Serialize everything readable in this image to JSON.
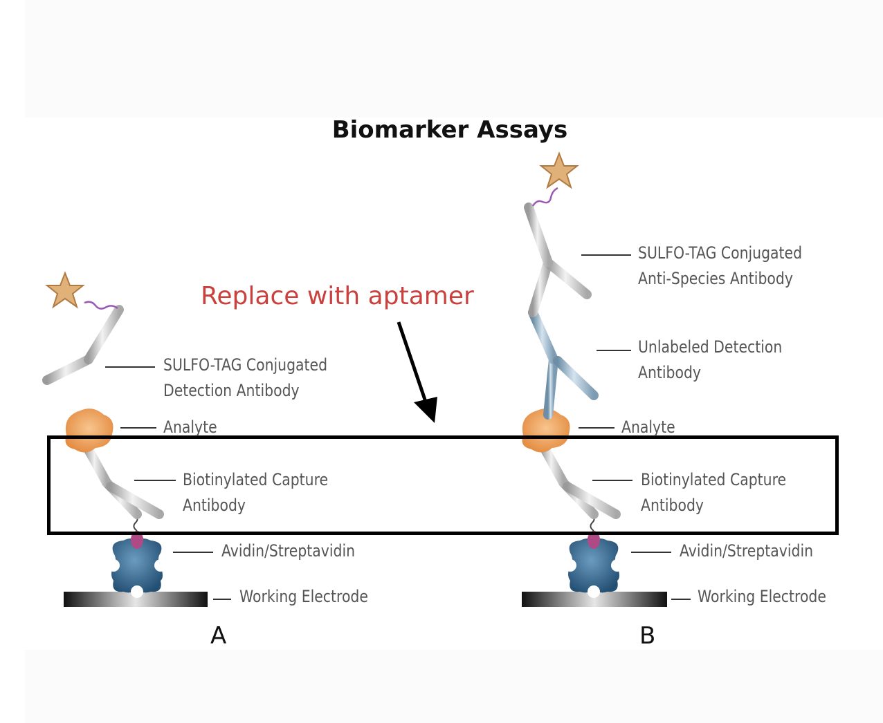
{
  "title": "Biomarker Assays",
  "annotation": "Replace with aptamer",
  "panel_a": {
    "letter": "A",
    "labels": {
      "sulfo_tag_line1": "SULFO-TAG Conjugated",
      "sulfo_tag_line2": "Detection Antibody",
      "analyte": "Analyte",
      "capture_line1": "Biotinylated Capture",
      "capture_line2": "Antibody",
      "avidin": "Avidin/Streptavidin",
      "electrode": "Working Electrode"
    }
  },
  "panel_b": {
    "letter": "B",
    "labels": {
      "sulfo_tag_line1": "SULFO-TAG Conjugated",
      "sulfo_tag_line2": "Anti-Species Antibody",
      "unlabeled_line1": "Unlabeled Detection",
      "unlabeled_line2": "Antibody",
      "analyte": "Analyte",
      "capture_line1": "Biotinylated Capture",
      "capture_line2": "Antibody",
      "avidin": "Avidin/Streptavidin",
      "electrode": "Working Electrode"
    }
  },
  "colors": {
    "annotation": "#c9403d",
    "antibody": "#c8c8c8",
    "unlabeled_antibody": "#8fb0c6",
    "analyte": "#f0a35a",
    "avidin": "#3a6f95",
    "biotin": "#b04a86",
    "star": "#e0b27a",
    "highlight_box": "#000000"
  }
}
